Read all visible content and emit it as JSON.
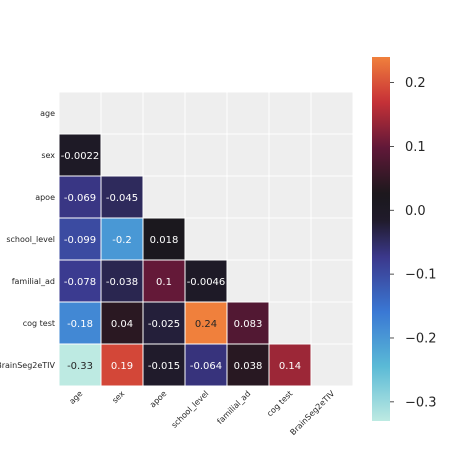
{
  "chart_data": {
    "type": "heatmap",
    "title": "",
    "xlabel": "",
    "ylabel": "",
    "variables": [
      "age",
      "sex",
      "apoe",
      "school_level",
      "familial_ad",
      "cog test",
      "BrainSeg2eTIV"
    ],
    "mask": "upper-triangle-including-diagonal",
    "matrix": [
      [
        null,
        null,
        null,
        null,
        null,
        null,
        null
      ],
      [
        -0.0022,
        null,
        null,
        null,
        null,
        null,
        null
      ],
      [
        -0.069,
        -0.045,
        null,
        null,
        null,
        null,
        null
      ],
      [
        -0.099,
        -0.2,
        0.018,
        null,
        null,
        null,
        null
      ],
      [
        -0.078,
        -0.038,
        0.1,
        -0.0046,
        null,
        null,
        null
      ],
      [
        -0.18,
        0.04,
        -0.025,
        0.24,
        0.083,
        null,
        null
      ],
      [
        -0.33,
        0.19,
        -0.015,
        -0.064,
        0.038,
        0.14,
        null
      ]
    ],
    "cell_labels": [
      [
        "",
        "",
        "",
        "",
        "",
        "",
        ""
      ],
      [
        "-0.0022",
        "",
        "",
        "",
        "",
        "",
        ""
      ],
      [
        "-0.069",
        "-0.045",
        "",
        "",
        "",
        "",
        ""
      ],
      [
        "-0.099",
        "-0.2",
        "0.018",
        "",
        "",
        "",
        ""
      ],
      [
        "-0.078",
        "-0.038",
        "0.1",
        "-0.0046",
        "",
        "",
        ""
      ],
      [
        "-0.18",
        "0.04",
        "-0.025",
        "0.24",
        "0.083",
        "",
        ""
      ],
      [
        "-0.33",
        "0.19",
        "-0.015",
        "-0.064",
        "0.038",
        "0.14",
        ""
      ]
    ],
    "colorbar": {
      "cmap": "icefire",
      "vmin": -0.33,
      "vmax": 0.24,
      "ticks": [
        0.2,
        0.1,
        0.0,
        -0.1,
        -0.2,
        -0.3
      ],
      "tick_labels": [
        "0.2",
        "0.1",
        "0.0",
        "−0.1",
        "−0.2",
        "−0.3"
      ]
    },
    "grid": false,
    "masked_color": "#eeeeee"
  }
}
